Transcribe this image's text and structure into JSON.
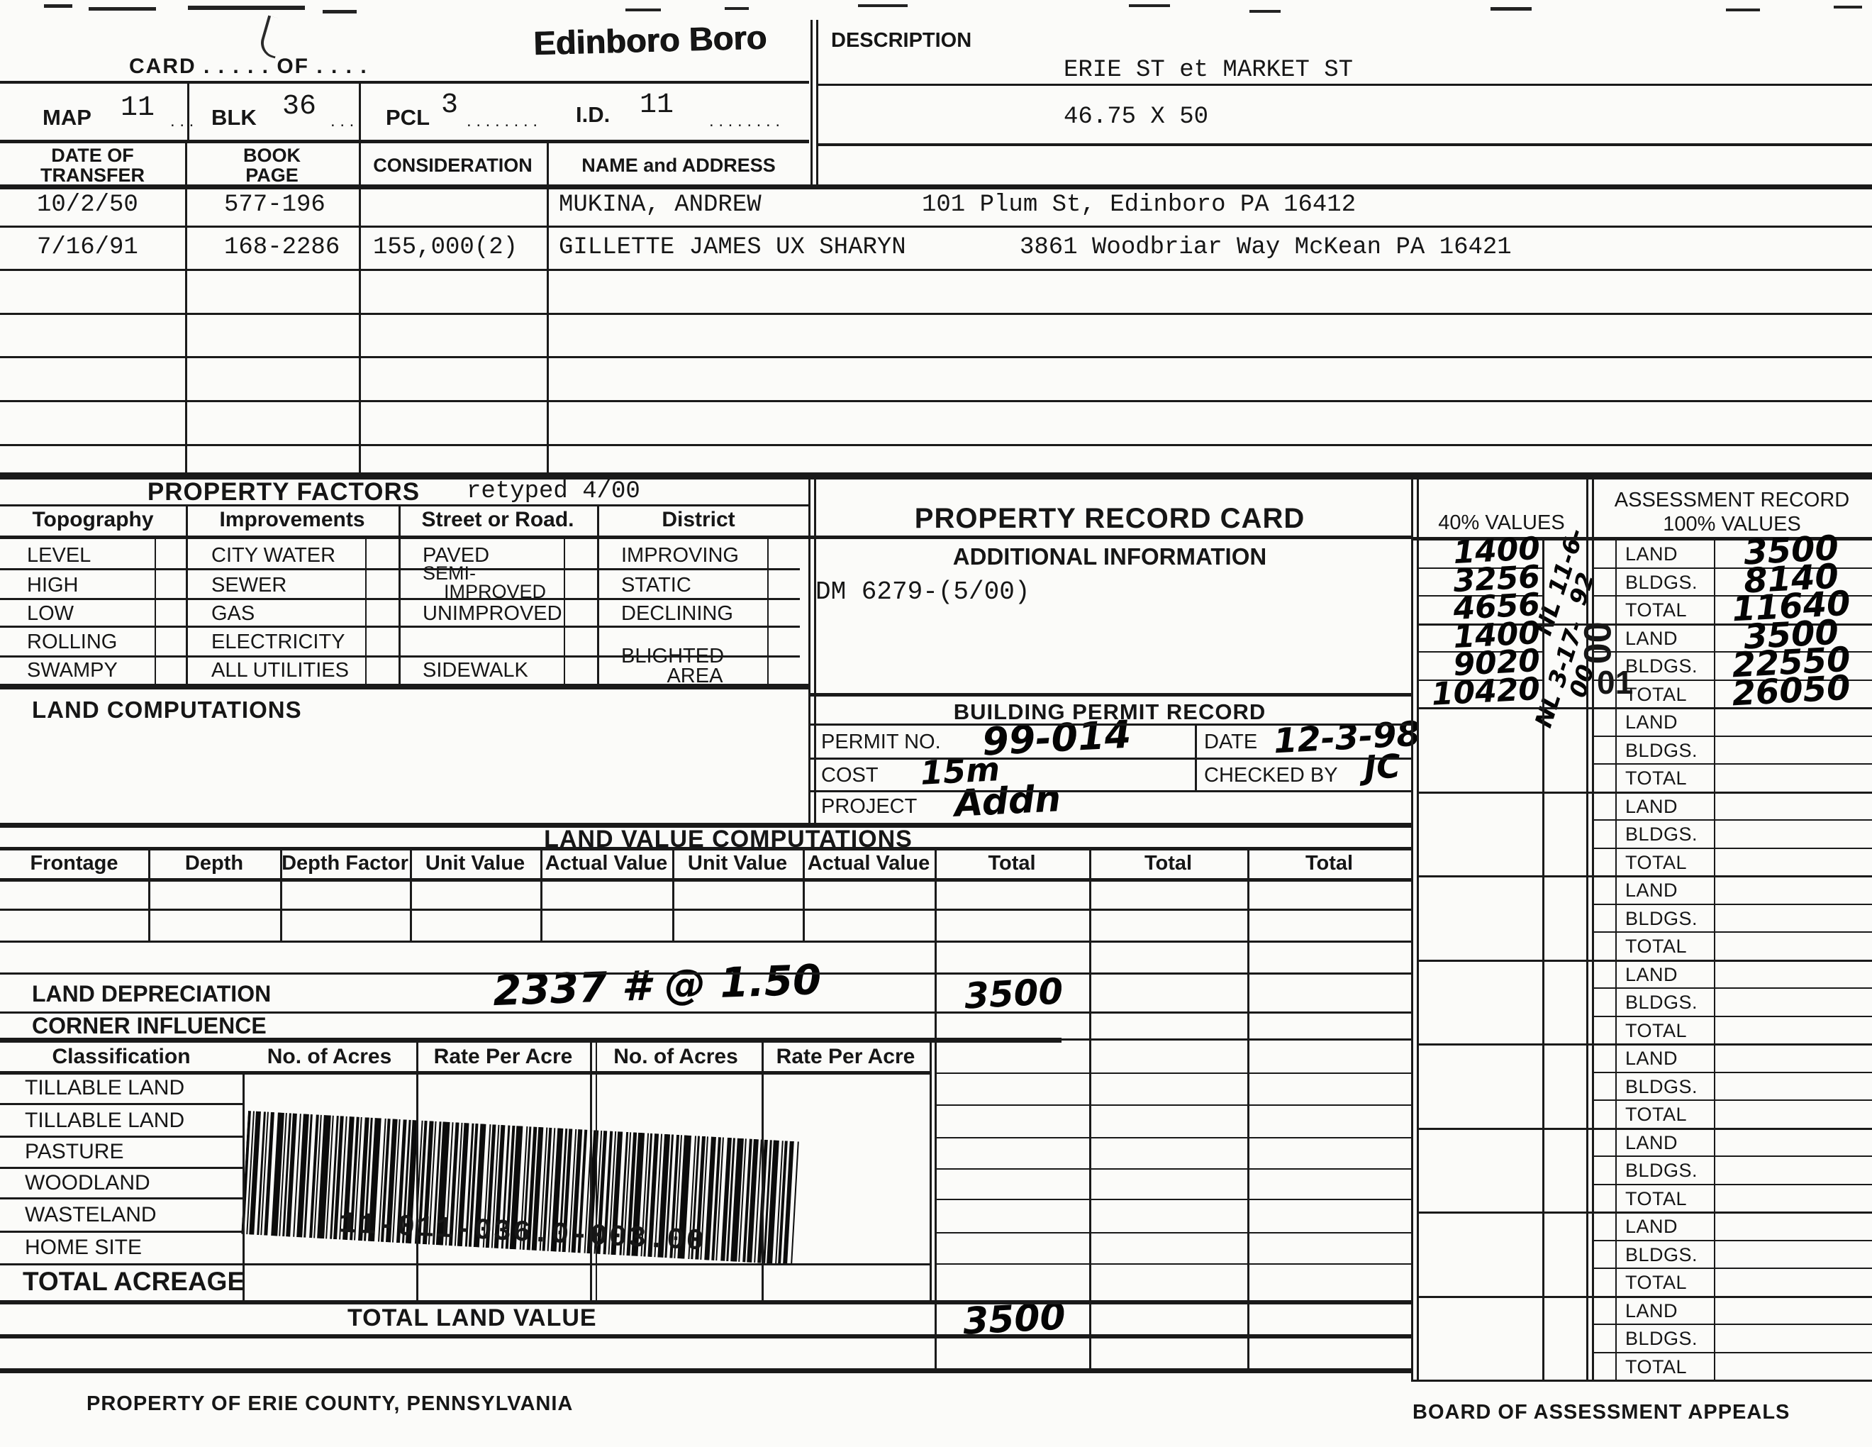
{
  "page": {
    "card_of_label": "CARD . . . . . OF . . . .",
    "boro_title": "Edinboro Boro",
    "footer_left": "PROPERTY OF ERIE COUNTY, PENNSYLVANIA",
    "footer_right": "BOARD OF ASSESSMENT APPEALS"
  },
  "leaders": {
    "short": ". . .",
    "long": ". . . . . . . ."
  },
  "description": {
    "label": "DESCRIPTION",
    "line1": "ERIE ST et MARKET ST",
    "line2": "46.75 X 50"
  },
  "parcel_id": {
    "map_label": "MAP",
    "map_value": "11",
    "blk_label": "BLK",
    "blk_value": "36",
    "pcl_label": "PCL",
    "pcl_value": "3",
    "id_label": "I.D.",
    "id_value": "11"
  },
  "transfer_table": {
    "header_date": "DATE OF\nTRANSFER",
    "header_book": "BOOK\nPAGE",
    "header_consideration": "CONSIDERATION",
    "header_name": "NAME and ADDRESS",
    "rows": [
      {
        "date": "10/2/50",
        "book_page": "577-196",
        "consideration": "",
        "name": "MUKINA, ANDREW",
        "address": "101 Plum St, Edinboro PA  16412"
      },
      {
        "date": "7/16/91",
        "book_page": "168-2286",
        "consideration": "155,000(2)",
        "name": "GILLETTE JAMES UX SHARYN",
        "address": "3861 Woodbriar Way  McKean PA  16421"
      }
    ]
  },
  "property_factors": {
    "title": "PROPERTY FACTORS",
    "retyped_note": "retyped 4/00",
    "col_topography": "Topography",
    "col_improvements": "Improvements",
    "col_street": "Street or Road.",
    "col_district": "District",
    "topography": [
      "LEVEL",
      "HIGH",
      "LOW",
      "ROLLING",
      "SWAMPY"
    ],
    "improvements": [
      "CITY WATER",
      "SEWER",
      "GAS",
      "ELECTRICITY",
      "ALL UTILITIES"
    ],
    "street": [
      "PAVED",
      "SEMI-\n    IMPROVED",
      "UNIMPROVED",
      "",
      "SIDEWALK"
    ],
    "district": [
      "IMPROVING",
      "STATIC",
      "DECLINING",
      "",
      "BLIGHTED\n        AREA"
    ]
  },
  "land_computations_label": "LAND COMPUTATIONS",
  "property_record_card": {
    "title": "PROPERTY RECORD CARD",
    "additional_info_label": "ADDITIONAL INFORMATION",
    "additional_info_value": "DM 6279-(5/00)"
  },
  "building_permit": {
    "title": "BUILDING PERMIT RECORD",
    "permit_no_label": "PERMIT NO.",
    "permit_no_value": "99-014",
    "date_label": "DATE",
    "date_value": "12-3-98",
    "cost_label": "COST",
    "cost_value": "15m",
    "checked_by_label": "CHECKED BY",
    "checked_by_value": "JC",
    "project_label": "PROJECT",
    "project_value": "Addn"
  },
  "values_panel": {
    "forty_header": "40% VALUES",
    "assessment_header_line1": "ASSESSMENT RECORD",
    "assessment_header_line2": "100% VALUES",
    "row_labels": [
      "LAND",
      "BLDGS.",
      "TOTAL"
    ],
    "rows_40": [
      "1400",
      "3256",
      "4656",
      "1400",
      "9020",
      "10420"
    ],
    "rows_100": [
      "3500",
      "8140",
      "11640",
      "3500",
      "22550",
      "26050"
    ],
    "annotation_group1": "NL 11-6-92",
    "annotation_group2": "NL 3-17-00",
    "stamp_year_00": "00",
    "stamp_year_01": "01"
  },
  "land_value_computations": {
    "title": "LAND VALUE COMPUTATIONS",
    "headers": [
      "Frontage",
      "Depth",
      "Depth Factor",
      "Unit Value",
      "Actual Value",
      "Unit Value",
      "Actual Value",
      "Total",
      "Total",
      "Total"
    ],
    "land_depreciation_label": "LAND DEPRECIATION",
    "land_depreciation_note": "2337 # @ 1.50",
    "land_depreciation_total": "3500",
    "corner_influence_label": "CORNER INFLUENCE"
  },
  "classification": {
    "headers": [
      "Classification",
      "No. of Acres",
      "Rate Per Acre",
      "No. of Acres",
      "Rate Per Acre"
    ],
    "rows": [
      "TILLABLE LAND",
      "TILLABLE LAND",
      "PASTURE",
      "WOODLAND",
      "WASTELAND",
      "HOME SITE"
    ],
    "total_acreage_label": "TOTAL ACREAGE",
    "barcode_text": "11-011-036.0-003.00"
  },
  "total_land_value": {
    "label": "TOTAL LAND VALUE",
    "value": "3500"
  }
}
